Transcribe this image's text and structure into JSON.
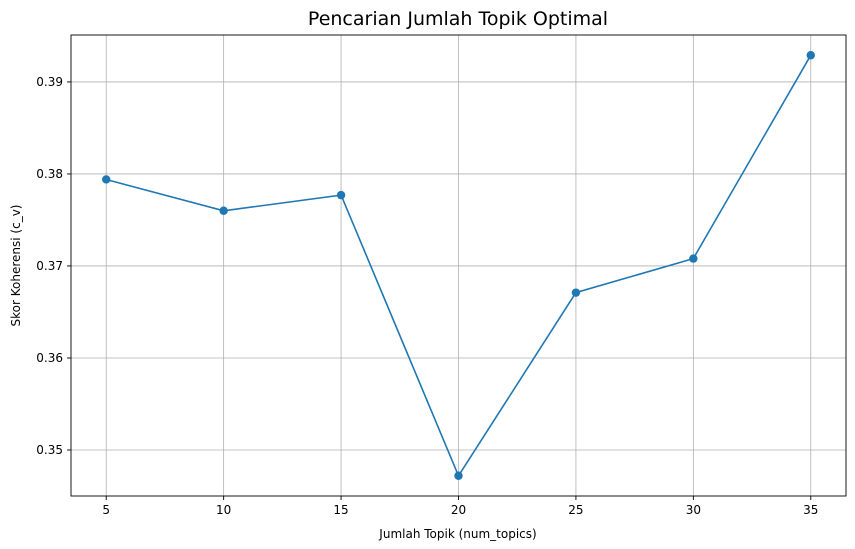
{
  "chart_data": {
    "type": "line",
    "title": "Pencarian Jumlah Topik Optimal",
    "xlabel": "Jumlah Topik (num_topics)",
    "ylabel": "Skor Koherensi (c_v)",
    "x": [
      5,
      10,
      15,
      20,
      25,
      30,
      35
    ],
    "series": [
      {
        "values": [
          0.3794,
          0.376,
          0.3777,
          0.3472,
          0.3671,
          0.3708,
          0.3929
        ],
        "color": "#1f77b4",
        "marker": "circle"
      }
    ],
    "xticks": [
      "5",
      "10",
      "15",
      "20",
      "25",
      "30",
      "35"
    ],
    "yticks": [
      "0.35",
      "0.36",
      "0.37",
      "0.38",
      "0.39"
    ],
    "xlim": [
      3.5,
      36.5
    ],
    "ylim": [
      0.345,
      0.3951
    ],
    "grid": true,
    "legend": "none"
  }
}
